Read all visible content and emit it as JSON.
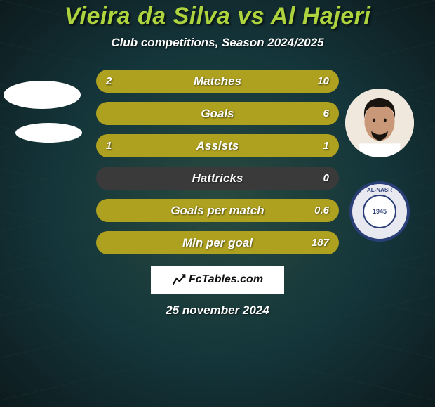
{
  "colors": {
    "bg_dark": "#0d1b1e",
    "bg_mid": "#14353a",
    "bg_light": "#2a4a3f",
    "title": "#add43e",
    "subtitle": "#ffffff",
    "bar_track": "#3a3a3a",
    "bar_fill": "#aea11f",
    "bar_label": "#ffffff",
    "bar_value": "#ffffff",
    "avatar_left": "#ffffff",
    "brand_bg": "#ffffff",
    "brand_text": "#111111",
    "date": "#ffffff",
    "badge_outer": "#e8e8f0",
    "badge_ring": "#2a3e78",
    "badge_inner": "#ffffff",
    "badge_text": "#2a3e78",
    "face_skin": "#c89878",
    "face_hair": "#1a1410"
  },
  "title": "Vieira da Silva vs Al Hajeri",
  "subtitle": "Club competitions, Season 2024/2025",
  "bars": [
    {
      "label": "Matches",
      "left": "2",
      "right": "10",
      "left_pct": 16.7,
      "right_pct": 83.3
    },
    {
      "label": "Goals",
      "left": "",
      "right": "6",
      "left_pct": 0,
      "right_pct": 100
    },
    {
      "label": "Assists",
      "left": "1",
      "right": "1",
      "left_pct": 50,
      "right_pct": 50
    },
    {
      "label": "Hattricks",
      "left": "",
      "right": "0",
      "left_pct": 0,
      "right_pct": 0
    },
    {
      "label": "Goals per match",
      "left": "",
      "right": "0.6",
      "left_pct": 0,
      "right_pct": 100
    },
    {
      "label": "Min per goal",
      "left": "",
      "right": "187",
      "left_pct": 0,
      "right_pct": 100
    }
  ],
  "brand": "FcTables.com",
  "date": "25 november 2024",
  "badge": {
    "top_text": "AL-NASR",
    "year": "1945"
  }
}
